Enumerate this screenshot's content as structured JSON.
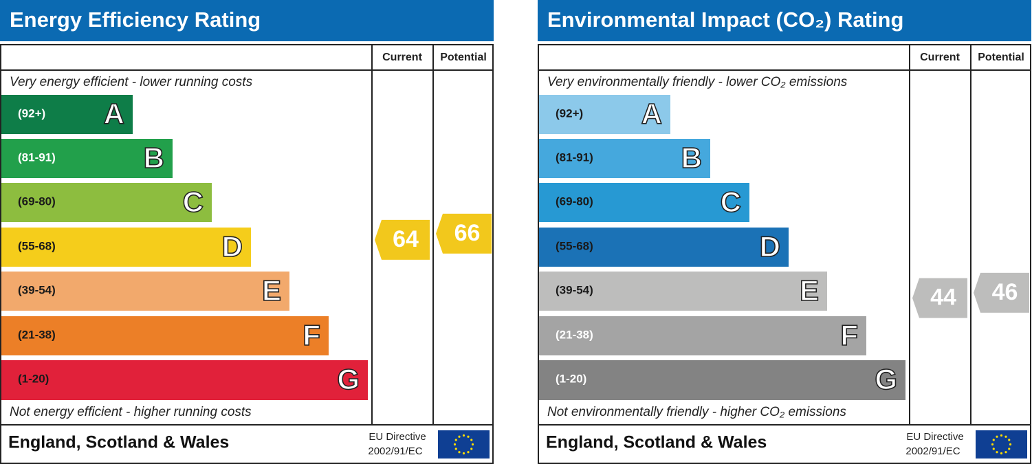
{
  "panels": [
    {
      "title": "Energy Efficiency Rating",
      "current_label": "Current",
      "potential_label": "Potential",
      "top_note": "Very energy efficient - lower running costs",
      "bottom_note": "Not energy efficient - higher running costs",
      "bands": [
        {
          "range": "(92+)",
          "letter": "A",
          "color": "#0e7d48",
          "text_color": "#ffffff"
        },
        {
          "range": "(81-91)",
          "letter": "B",
          "color": "#22a04b",
          "text_color": "#ffffff"
        },
        {
          "range": "(69-80)",
          "letter": "C",
          "color": "#8dbd3f",
          "text_color": "#1a1a1a"
        },
        {
          "range": "(55-68)",
          "letter": "D",
          "color": "#f5cd1b",
          "text_color": "#1a1a1a"
        },
        {
          "range": "(39-54)",
          "letter": "E",
          "color": "#f2a96c",
          "text_color": "#1a1a1a"
        },
        {
          "range": "(21-38)",
          "letter": "F",
          "color": "#ec7f27",
          "text_color": "#1a1a1a"
        },
        {
          "range": "(1-20)",
          "letter": "G",
          "color": "#e1213a",
          "text_color": "#1a1a1a"
        }
      ],
      "current": 64,
      "potential": 66,
      "arrow_color": "#f2c81c",
      "country": "England, Scotland & Wales",
      "directive": [
        "EU Directive",
        "2002/91/EC"
      ]
    },
    {
      "title": "Environmental Impact (CO₂) Rating",
      "current_label": "Current",
      "potential_label": "Potential",
      "top_note": "Very environmentally friendly - lower CO₂ emissions",
      "bottom_note": "Not environmentally friendly - higher CO₂ emissions",
      "bands": [
        {
          "range": "(92+)",
          "letter": "A",
          "color": "#8cc9ea",
          "text_color": "#1a1a1a"
        },
        {
          "range": "(81-91)",
          "letter": "B",
          "color": "#45a8dd",
          "text_color": "#1a1a1a"
        },
        {
          "range": "(69-80)",
          "letter": "C",
          "color": "#2799d3",
          "text_color": "#1a1a1a"
        },
        {
          "range": "(55-68)",
          "letter": "D",
          "color": "#1b72b6",
          "text_color": "#1a1a1a"
        },
        {
          "range": "(39-54)",
          "letter": "E",
          "color": "#bdbdbc",
          "text_color": "#1a1a1a"
        },
        {
          "range": "(21-38)",
          "letter": "F",
          "color": "#a4a4a4",
          "text_color": "#ffffff"
        },
        {
          "range": "(1-20)",
          "letter": "G",
          "color": "#838383",
          "text_color": "#ffffff"
        }
      ],
      "current": 44,
      "potential": 46,
      "arrow_color": "#bdbdbc",
      "country": "England, Scotland & Wales",
      "directive": [
        "EU Directive",
        "2002/91/EC"
      ]
    }
  ]
}
